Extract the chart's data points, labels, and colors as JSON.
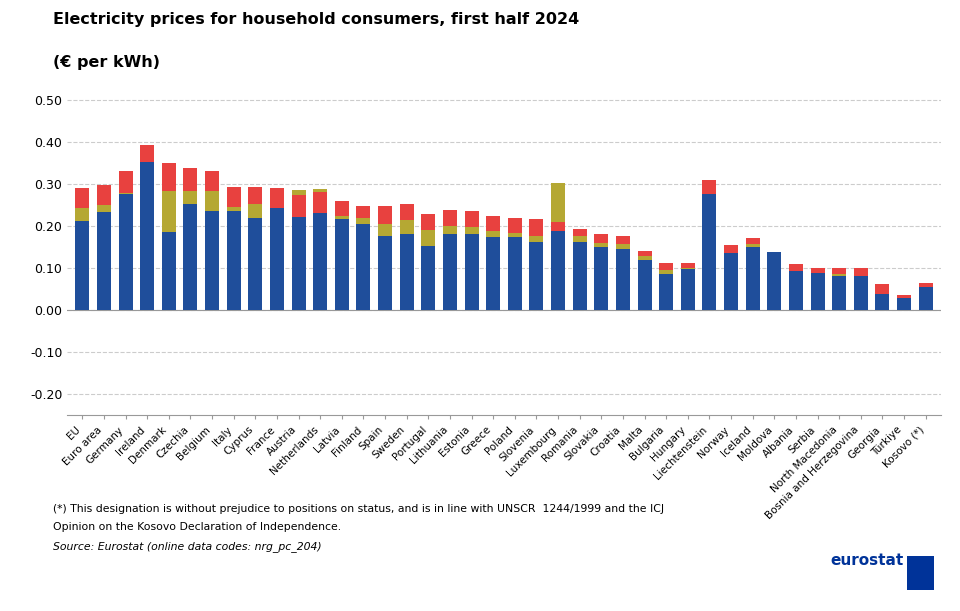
{
  "title_line1": "Electricity prices for household consumers, first half 2024",
  "title_line2": "(€ per kWh)",
  "categories": [
    "EU",
    "Euro area",
    "Germany",
    "Ireland",
    "Denmark",
    "Czechia",
    "Belgium",
    "Italy",
    "Cyprus",
    "France",
    "Austria",
    "Netherlands",
    "Latvia",
    "Finland",
    "Spain",
    "Sweden",
    "Portugal",
    "Lithuania",
    "Estonia",
    "Greece",
    "Poland",
    "Slovenia",
    "Luxembourg",
    "Romania",
    "Slovakia",
    "Croatia",
    "Malta",
    "Bulgaria",
    "Hungary",
    "Liechtenstein",
    "Norway",
    "Iceland",
    "Moldova",
    "Albania",
    "Serbia",
    "North Macedonia",
    "Bosnia and Herzegovina",
    "Georgia",
    "Türkiye",
    "Kosovo (*)"
  ],
  "without_taxes": [
    0.213,
    0.234,
    0.278,
    0.384,
    0.187,
    0.253,
    0.237,
    0.237,
    0.22,
    0.243,
    0.287,
    0.29,
    0.218,
    0.207,
    0.177,
    0.183,
    0.154,
    0.182,
    0.181,
    0.174,
    0.175,
    0.163,
    0.304,
    0.163,
    0.15,
    0.147,
    0.12,
    0.086,
    0.098,
    0.277,
    0.137,
    0.152,
    0.14,
    0.093,
    0.09,
    0.082,
    0.082,
    0.04,
    0.035,
    0.056
  ],
  "other_taxes": [
    0.03,
    0.018,
    0.001,
    -0.03,
    0.097,
    0.032,
    0.048,
    0.01,
    0.033,
    0.0,
    -0.065,
    -0.057,
    0.008,
    0.012,
    0.028,
    0.032,
    0.038,
    0.018,
    0.017,
    0.016,
    0.01,
    0.015,
    -0.115,
    0.015,
    0.01,
    0.011,
    0.009,
    0.01,
    0.003,
    0.0,
    0.0,
    0.007,
    0.0,
    0.0,
    0.0,
    0.005,
    0.0,
    0.0,
    -0.005,
    0.0
  ],
  "vat": [
    0.048,
    0.046,
    0.053,
    0.04,
    0.068,
    0.055,
    0.048,
    0.048,
    0.04,
    0.048,
    0.052,
    0.05,
    0.035,
    0.03,
    0.043,
    0.038,
    0.038,
    0.04,
    0.038,
    0.034,
    0.035,
    0.04,
    0.021,
    0.016,
    0.023,
    0.02,
    0.012,
    0.016,
    0.013,
    0.033,
    0.02,
    0.013,
    0.0,
    0.017,
    0.012,
    0.013,
    0.018,
    0.023,
    0.008,
    0.009
  ],
  "color_blue": "#1f4e9b",
  "color_olive": "#b5a833",
  "color_red": "#e8413f",
  "ylim": [
    -0.25,
    0.55
  ],
  "yticks": [
    -0.2,
    -0.1,
    0.0,
    0.1,
    0.2,
    0.3,
    0.4,
    0.5
  ],
  "footnote1": "(*) This designation is without prejudice to positions on status, and is in line with UNSCR  1244/1999 and the ICJ",
  "footnote2": "Opinion on the Kosovo Declaration of Independence.",
  "source": "Source: Eurostat (online data codes: nrg_pc_204)"
}
